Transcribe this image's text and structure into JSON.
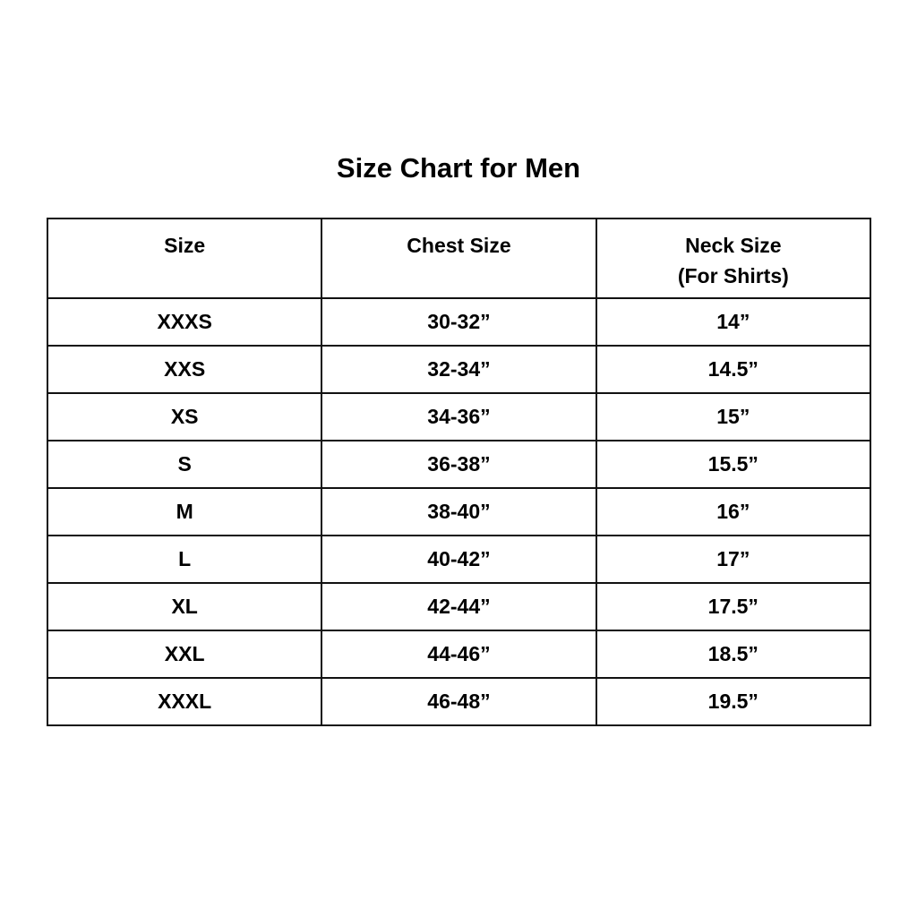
{
  "title": "Size Chart for Men",
  "table": {
    "headers": [
      "Size",
      "Chest Size",
      "Neck Size",
      "(For Shirts)"
    ],
    "rows": [
      [
        "XXXS",
        "30-32”",
        "14”"
      ],
      [
        "XXS",
        "32-34”",
        "14.5”"
      ],
      [
        "XS",
        "34-36”",
        "15”"
      ],
      [
        "S",
        "36-38”",
        "15.5”"
      ],
      [
        "M",
        "38-40”",
        "16”"
      ],
      [
        "L",
        "40-42”",
        "17”"
      ],
      [
        "XL",
        "42-44”",
        "17.5”"
      ],
      [
        "XXL",
        "44-46”",
        "18.5”"
      ],
      [
        "XXXL",
        "46-48”",
        "19.5”"
      ]
    ]
  }
}
